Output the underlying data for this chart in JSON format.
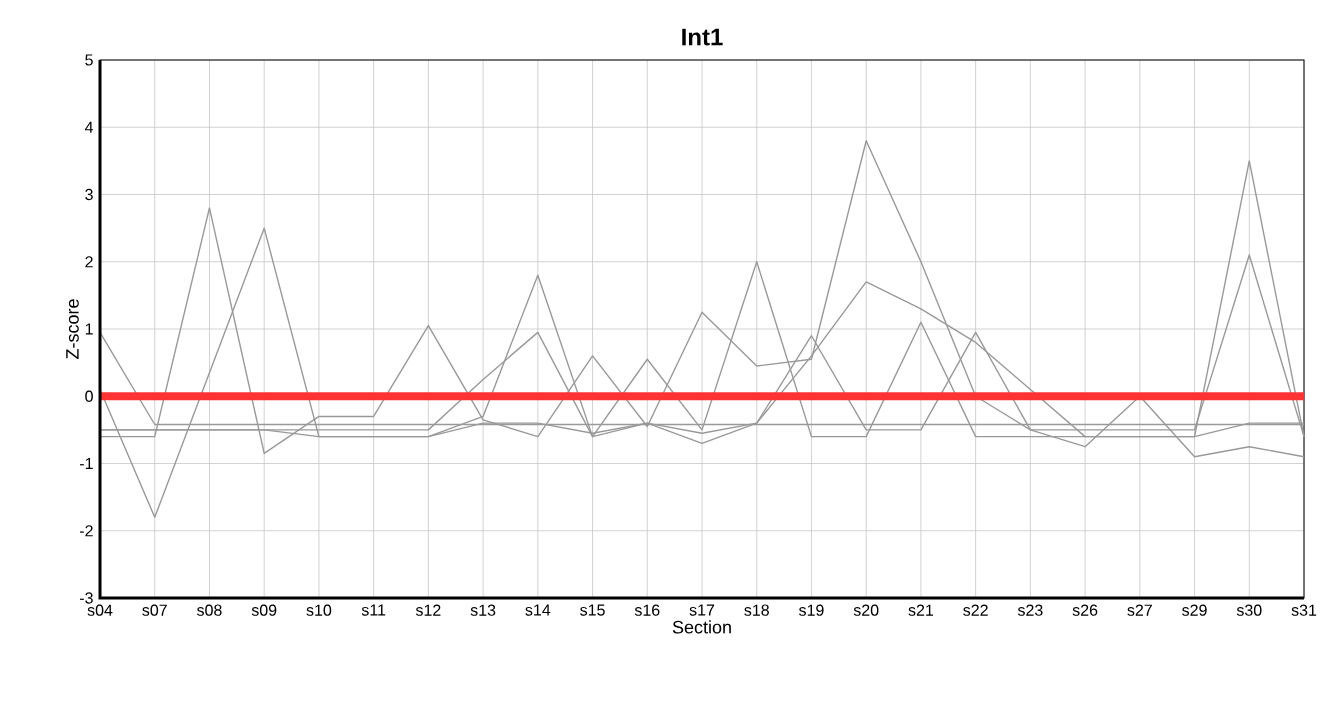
{
  "chart_data": {
    "type": "line",
    "title": "Int1",
    "xlabel": "Section",
    "ylabel": "Z-score",
    "categories": [
      "s04",
      "s07",
      "s08",
      "s09",
      "s10",
      "s11",
      "s12",
      "s13",
      "s14",
      "s15",
      "s16",
      "s17",
      "s18",
      "s19",
      "s20",
      "s21",
      "s22",
      "s23",
      "s26",
      "s27",
      "s29",
      "s30",
      "s31"
    ],
    "series": [
      {
        "color": "#999999",
        "values": [
          0.95,
          -0.42,
          -0.42,
          -0.42,
          -0.42,
          -0.42,
          -0.42,
          -0.42,
          -0.42,
          -0.42,
          -0.42,
          -0.42,
          -0.42,
          -0.42,
          -0.42,
          -0.42,
          -0.42,
          -0.42,
          -0.42,
          -0.42,
          -0.42,
          -0.42,
          -0.42
        ]
      },
      {
        "color": "#999999",
        "values": [
          0.1,
          -1.8,
          0.35,
          2.5,
          -0.6,
          -0.6,
          -0.6,
          -0.3,
          1.8,
          -0.6,
          0.55,
          -0.5,
          2.0,
          -0.6,
          -0.6,
          1.1,
          -0.6,
          -0.6,
          -0.6,
          -0.6,
          -0.6,
          3.5,
          -0.6
        ]
      },
      {
        "color": "#999999",
        "values": [
          -0.6,
          -0.6,
          2.8,
          -0.85,
          -0.3,
          -0.3,
          1.05,
          -0.35,
          -0.6,
          0.6,
          -0.45,
          1.25,
          0.45,
          0.55,
          3.8,
          2.0,
          0.0,
          -0.5,
          -0.5,
          -0.5,
          -0.5,
          2.1,
          -0.6
        ]
      },
      {
        "color": "#999999",
        "values": [
          -0.5,
          -0.5,
          -0.5,
          -0.5,
          -0.5,
          -0.5,
          -0.5,
          0.25,
          0.95,
          -0.6,
          -0.4,
          -0.7,
          -0.4,
          0.9,
          -0.5,
          -0.5,
          0.95,
          -0.5,
          -0.75,
          0.0,
          -0.9,
          -0.75,
          -0.9
        ]
      },
      {
        "color": "#999999",
        "values": [
          -0.5,
          -0.5,
          -0.5,
          -0.5,
          -0.6,
          -0.6,
          -0.6,
          -0.4,
          -0.4,
          -0.55,
          -0.4,
          -0.55,
          -0.4,
          0.6,
          1.7,
          1.3,
          0.8,
          0.1,
          -0.6,
          -0.6,
          -0.6,
          -0.4,
          -0.4
        ]
      },
      {
        "color": "#ff3333",
        "values": [
          0,
          0,
          0,
          0,
          0,
          0,
          0,
          0,
          0,
          0,
          0,
          0,
          0,
          0,
          0,
          0,
          0,
          0,
          0,
          0,
          0,
          0,
          0
        ]
      }
    ],
    "ylim": [
      -3,
      5
    ],
    "yticks": [
      -3,
      -2,
      -1,
      0,
      1,
      2,
      3,
      4,
      5
    ],
    "grid": true,
    "marker": "none",
    "line_style": "solid"
  }
}
